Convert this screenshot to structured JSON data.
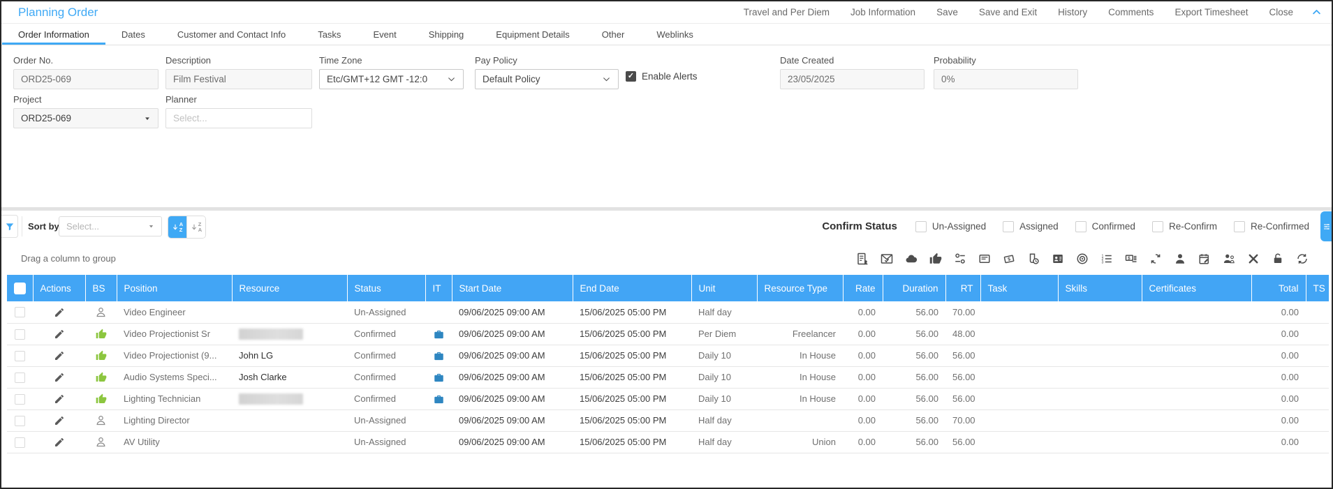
{
  "window": {
    "title": "Planning Order"
  },
  "header": {
    "menu_items": [
      "Travel and Per Diem",
      "Job Information",
      "Save",
      "Save and Exit",
      "History",
      "Comments",
      "Export Timesheet",
      "Close"
    ],
    "collapse_icon": "chevron-up-icon"
  },
  "tabs": [
    {
      "label": "Order Information",
      "active": true
    },
    {
      "label": "Dates",
      "active": false
    },
    {
      "label": "Customer and Contact Info",
      "active": false
    },
    {
      "label": "Tasks",
      "active": false
    },
    {
      "label": "Event",
      "active": false
    },
    {
      "label": "Shipping",
      "active": false
    },
    {
      "label": "Equipment Details",
      "active": false
    },
    {
      "label": "Other",
      "active": false
    },
    {
      "label": "Weblinks",
      "active": false
    }
  ],
  "form": {
    "order_no": {
      "label": "Order No.",
      "value": "ORD25-069"
    },
    "description": {
      "label": "Description",
      "value": "Film Festival"
    },
    "time_zone": {
      "label": "Time Zone",
      "value": "Etc/GMT+12 GMT -12:0"
    },
    "pay_policy": {
      "label": "Pay Policy",
      "value": "Default Policy"
    },
    "enable_alerts": {
      "label": "Enable Alerts",
      "checked": true
    },
    "date_created": {
      "label": "Date Created",
      "value": "23/05/2025"
    },
    "probability": {
      "label": "Probability",
      "value": "0%"
    },
    "project": {
      "label": "Project",
      "value": "ORD25-069"
    },
    "planner": {
      "label": "Planner",
      "placeholder": "Select..."
    }
  },
  "filter_bar": {
    "sort_by_label": "Sort by",
    "sort_placeholder": "Select...",
    "sort_asc_letters": [
      "A",
      "Z"
    ],
    "sort_desc_letters": [
      "Z",
      "A"
    ],
    "confirm_status_label": "Confirm Status",
    "status_filters": [
      {
        "label": "Un-Assigned",
        "checked": false
      },
      {
        "label": "Assigned",
        "checked": false
      },
      {
        "label": "Confirmed",
        "checked": false
      },
      {
        "label": "Re-Confirm",
        "checked": false
      },
      {
        "label": "Re-Confirmed",
        "checked": false
      }
    ]
  },
  "group_bar": {
    "hint": "Drag a column to group",
    "toolbar_icons": [
      "assignment-icon",
      "mail-check-icon",
      "cloud-icon",
      "thumbs-up-icon",
      "toggles-icon",
      "card-icon",
      "money-tag-icon",
      "time-clock-icon",
      "contact-card-icon",
      "target-icon",
      "numbered-list-icon",
      "invoice-icon",
      "sync-icon",
      "person-icon",
      "calendar-edit-icon",
      "people-icon",
      "close-icon",
      "unlock-icon",
      "refresh-icon"
    ]
  },
  "table": {
    "columns": [
      {
        "key": "sel",
        "label": ""
      },
      {
        "key": "actions",
        "label": "Actions"
      },
      {
        "key": "bs",
        "label": "BS"
      },
      {
        "key": "position",
        "label": "Position"
      },
      {
        "key": "resource",
        "label": "Resource"
      },
      {
        "key": "status",
        "label": "Status"
      },
      {
        "key": "it",
        "label": "IT"
      },
      {
        "key": "start_date",
        "label": "Start Date"
      },
      {
        "key": "end_date",
        "label": "End Date"
      },
      {
        "key": "unit",
        "label": "Unit"
      },
      {
        "key": "resource_type",
        "label": "Resource Type"
      },
      {
        "key": "rate",
        "label": "Rate"
      },
      {
        "key": "duration",
        "label": "Duration"
      },
      {
        "key": "rt",
        "label": "RT"
      },
      {
        "key": "task",
        "label": "Task"
      },
      {
        "key": "skills",
        "label": "Skills"
      },
      {
        "key": "certificates",
        "label": "Certificates"
      },
      {
        "key": "total",
        "label": "Total"
      },
      {
        "key": "ts",
        "label": "TS"
      }
    ],
    "rows": [
      {
        "bs_icon": "person-outline-icon",
        "position": "Video Engineer",
        "resource": "",
        "resource_blurred": false,
        "status": "Un-Assigned",
        "it_icon": "",
        "start_date": "09/06/2025 09:00 AM",
        "end_date": "15/06/2025 05:00 PM",
        "unit": "Half day",
        "resource_type": "",
        "rate": "0.00",
        "duration": "56.00",
        "rt": "70.00",
        "task": "",
        "skills": "",
        "certificates": "",
        "total": "0.00",
        "ts": ""
      },
      {
        "bs_icon": "thumbs-up-icon",
        "position": "Video Projectionist Sr",
        "resource": "",
        "resource_blurred": true,
        "status": "Confirmed",
        "it_icon": "briefcase-icon",
        "start_date": "09/06/2025 09:00 AM",
        "end_date": "15/06/2025 05:00 PM",
        "unit": "Per Diem",
        "resource_type": "Freelancer",
        "rate": "0.00",
        "duration": "56.00",
        "rt": "48.00",
        "task": "",
        "skills": "",
        "certificates": "",
        "total": "0.00",
        "ts": ""
      },
      {
        "bs_icon": "thumbs-up-icon",
        "position": "Video Projectionist (9...",
        "resource": "John LG",
        "resource_blurred": false,
        "status": "Confirmed",
        "it_icon": "briefcase-icon",
        "start_date": "09/06/2025 09:00 AM",
        "end_date": "15/06/2025 05:00 PM",
        "unit": "Daily 10",
        "resource_type": "In House",
        "rate": "0.00",
        "duration": "56.00",
        "rt": "56.00",
        "task": "",
        "skills": "",
        "certificates": "",
        "total": "0.00",
        "ts": ""
      },
      {
        "bs_icon": "thumbs-up-icon",
        "position": "Audio Systems Speci...",
        "resource": "Josh Clarke",
        "resource_blurred": false,
        "status": "Confirmed",
        "it_icon": "briefcase-icon",
        "start_date": "09/06/2025 09:00 AM",
        "end_date": "15/06/2025 05:00 PM",
        "unit": "Daily 10",
        "resource_type": "In House",
        "rate": "0.00",
        "duration": "56.00",
        "rt": "56.00",
        "task": "",
        "skills": "",
        "certificates": "",
        "total": "0.00",
        "ts": ""
      },
      {
        "bs_icon": "thumbs-up-icon",
        "position": "Lighting Technician",
        "resource": "",
        "resource_blurred": true,
        "status": "Confirmed",
        "it_icon": "briefcase-icon",
        "start_date": "09/06/2025 09:00 AM",
        "end_date": "15/06/2025 05:00 PM",
        "unit": "Daily 10",
        "resource_type": "In House",
        "rate": "0.00",
        "duration": "56.00",
        "rt": "56.00",
        "task": "",
        "skills": "",
        "certificates": "",
        "total": "0.00",
        "ts": ""
      },
      {
        "bs_icon": "person-outline-icon",
        "position": "Lighting Director",
        "resource": "",
        "resource_blurred": false,
        "status": "Un-Assigned",
        "it_icon": "",
        "start_date": "09/06/2025 09:00 AM",
        "end_date": "15/06/2025 05:00 PM",
        "unit": "Half day",
        "resource_type": "",
        "rate": "0.00",
        "duration": "56.00",
        "rt": "70.00",
        "task": "",
        "skills": "",
        "certificates": "",
        "total": "0.00",
        "ts": ""
      },
      {
        "bs_icon": "person-outline-icon",
        "position": "AV Utility",
        "resource": "",
        "resource_blurred": false,
        "status": "Un-Assigned",
        "it_icon": "",
        "start_date": "09/06/2025 09:00 AM",
        "end_date": "15/06/2025 05:00 PM",
        "unit": "Half day",
        "resource_type": "Union",
        "rate": "0.00",
        "duration": "56.00",
        "rt": "56.00",
        "task": "",
        "skills": "",
        "certificates": "",
        "total": "0.00",
        "ts": ""
      }
    ]
  },
  "colors": {
    "accent_blue": "#3FA9F5",
    "table_header_blue": "#42A5F5",
    "confirmed_green": "#8CC63F",
    "briefcase_blue": "#2E86C1"
  }
}
